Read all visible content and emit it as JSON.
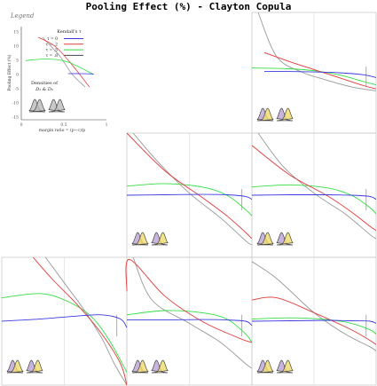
{
  "title": "Pooling Effect (%) - Clayton Copula",
  "colors": {
    "tau0": "#3a3adf",
    "tau2": "#e23a3a",
    "tau5": "#33dd44",
    "tau8": "#999999",
    "panel": "#cccccc",
    "grid": "#dddddd",
    "dens1": "#b9a3d6",
    "dens2": "#f0dc6a",
    "densEdge": "#333333",
    "legendDens": "#bbbbbb"
  },
  "legend": {
    "label": "Legend",
    "heading": "Kendall's τ",
    "entries": [
      {
        "label": "τ = 0",
        "color": "#3a3adf"
      },
      {
        "label": "τ = .2",
        "color": "#e23a3a"
      },
      {
        "label": "τ = .5",
        "color": "#33dd44"
      },
      {
        "label": "τ = .8",
        "color": "#444444"
      }
    ],
    "densities_line1": "Densities of",
    "densities_line2": "D₁ & D₂",
    "ylabel": "Pooling  Effect (%)",
    "xlabel": "margin ratio = (p−c)/p",
    "yticks": [
      "15",
      "10",
      "5",
      "0",
      "-5",
      "-10",
      "-15"
    ],
    "xticks": [
      "0",
      "0.5",
      "1"
    ]
  },
  "chart_data": {
    "type": "line",
    "title": "Pooling Effect (%) - Clayton Copula",
    "xlabel": "margin ratio = (p−c)/p",
    "ylabel": "Pooling  Effect (%)",
    "xlim": [
      0,
      1
    ],
    "ylim": [
      -15,
      15
    ],
    "legend_title": "Kendall's τ",
    "legend_placement": "top-left panel",
    "panels": [
      {
        "id": "r1c3",
        "series": [
          {
            "name": "τ = 0",
            "x": [
              0.1,
              0.3,
              0.5,
              0.7,
              0.9,
              1.0
            ],
            "y": [
              0.3,
              0.3,
              0.2,
              0.0,
              -0.5,
              -1.2
            ]
          },
          {
            "name": "τ = .2",
            "x": [
              0.1,
              0.3,
              0.5,
              0.7,
              0.9,
              1.0
            ],
            "y": [
              5.0,
              2.8,
              0.8,
              -1.2,
              -3.2,
              -4.0
            ]
          },
          {
            "name": "τ = .5",
            "x": [
              0.0,
              0.3,
              0.5,
              0.7,
              0.9,
              1.0
            ],
            "y": [
              1.2,
              1.0,
              0.5,
              -0.5,
              -2.2,
              -3.0
            ]
          },
          {
            "name": "τ = .8",
            "x": [
              0.05,
              0.2,
              0.4,
              0.6,
              0.8,
              1.0
            ],
            "y": [
              15.0,
              4.0,
              0.2,
              -1.8,
              -3.5,
              -4.5
            ]
          }
        ]
      },
      {
        "id": "r2c2",
        "series": [
          {
            "name": "τ = 0",
            "x": [
              0.0,
              0.3,
              0.6,
              0.8,
              0.95,
              1.0
            ],
            "y": [
              0.0,
              0.1,
              0.2,
              0.1,
              -0.3,
              -1.0
            ]
          },
          {
            "name": "τ = .2",
            "x": [
              0.0,
              0.3,
              0.6,
              0.8,
              0.95,
              1.0
            ],
            "y": [
              15.0,
              6.0,
              -0.5,
              -5.0,
              -9.0,
              -10.5
            ]
          },
          {
            "name": "τ = .5",
            "x": [
              0.0,
              0.3,
              0.6,
              0.8,
              0.95,
              1.0
            ],
            "y": [
              2.2,
              2.8,
              2.0,
              0.0,
              -3.5,
              -5.0
            ]
          },
          {
            "name": "τ = .8",
            "x": [
              0.05,
              0.25,
              0.5,
              0.75,
              0.95,
              1.0
            ],
            "y": [
              15.0,
              8.0,
              0.5,
              -5.5,
              -11.0,
              -12.0
            ]
          }
        ]
      },
      {
        "id": "r2c3",
        "series": [
          {
            "name": "τ = 0",
            "x": [
              0.0,
              0.3,
              0.6,
              0.8,
              0.95,
              1.0
            ],
            "y": [
              0.0,
              0.1,
              0.1,
              0.0,
              -0.3,
              -1.0
            ]
          },
          {
            "name": "τ = .2",
            "x": [
              0.0,
              0.3,
              0.6,
              0.8,
              0.95,
              1.0
            ],
            "y": [
              12.0,
              5.0,
              0.0,
              -4.0,
              -7.5,
              -8.5
            ]
          },
          {
            "name": "τ = .5",
            "x": [
              0.0,
              0.3,
              0.6,
              0.8,
              0.95,
              1.0
            ],
            "y": [
              2.0,
              2.5,
              1.8,
              0.0,
              -3.0,
              -4.5
            ]
          },
          {
            "name": "τ = .8",
            "x": [
              0.05,
              0.25,
              0.5,
              0.75,
              0.95,
              1.0
            ],
            "y": [
              15.0,
              7.0,
              0.5,
              -4.5,
              -9.5,
              -10.5
            ]
          }
        ]
      },
      {
        "id": "r3c1",
        "series": [
          {
            "name": "τ = 0",
            "x": [
              0.0,
              0.3,
              0.6,
              0.8,
              0.95,
              1.0
            ],
            "y": [
              0.0,
              0.5,
              1.2,
              1.5,
              0.5,
              -1.5
            ]
          },
          {
            "name": "τ = .2",
            "x": [
              0.25,
              0.4,
              0.6,
              0.8,
              0.95,
              1.0
            ],
            "y": [
              15.0,
              10.0,
              4.0,
              -3.0,
              -10.0,
              -15.0
            ]
          },
          {
            "name": "τ = .5",
            "x": [
              0.0,
              0.3,
              0.5,
              0.7,
              0.85,
              1.0
            ],
            "y": [
              5.5,
              6.5,
              5.0,
              1.5,
              -4.0,
              -12.0
            ]
          },
          {
            "name": "τ = .8",
            "x": [
              0.35,
              0.5,
              0.65,
              0.8,
              0.9,
              1.0
            ],
            "y": [
              15.0,
              9.0,
              3.0,
              -4.0,
              -10.0,
              -15.0
            ]
          }
        ]
      },
      {
        "id": "r3c2",
        "series": [
          {
            "name": "τ = 0",
            "x": [
              0.0,
              0.3,
              0.6,
              0.8,
              0.95,
              1.0
            ],
            "y": [
              0.3,
              0.3,
              0.4,
              0.3,
              0.0,
              -1.0
            ]
          },
          {
            "name": "τ = .2",
            "x": [
              0.0,
              0.02,
              0.3,
              0.6,
              0.9,
              1.0
            ],
            "y": [
              7.0,
              14.5,
              6.0,
              0.0,
              -4.0,
              -5.0
            ]
          },
          {
            "name": "τ = .5",
            "x": [
              0.0,
              0.3,
              0.6,
              0.8,
              0.95,
              1.0
            ],
            "y": [
              1.5,
              2.5,
              2.0,
              0.5,
              -3.0,
              -5.0
            ]
          },
          {
            "name": "τ = .8",
            "x": [
              0.05,
              0.2,
              0.5,
              0.75,
              0.95,
              1.0
            ],
            "y": [
              15.0,
              5.0,
              -0.5,
              -5.0,
              -10.0,
              -11.0
            ]
          }
        ]
      },
      {
        "id": "r3c3",
        "series": [
          {
            "name": "τ = 0",
            "x": [
              0.0,
              0.3,
              0.6,
              0.8,
              0.95,
              1.0
            ],
            "y": [
              0.0,
              0.1,
              0.2,
              0.1,
              0.0,
              -0.5
            ]
          },
          {
            "name": "τ = .2",
            "x": [
              0.0,
              0.2,
              0.5,
              0.8,
              0.95,
              1.0
            ],
            "y": [
              5.0,
              5.5,
              2.0,
              -2.0,
              -4.5,
              -5.5
            ]
          },
          {
            "name": "τ = .5",
            "x": [
              0.0,
              0.3,
              0.6,
              0.8,
              0.95,
              1.0
            ],
            "y": [
              0.5,
              0.8,
              0.4,
              -0.5,
              -2.0,
              -3.0
            ]
          },
          {
            "name": "τ = .8",
            "x": [
              0.0,
              0.2,
              0.5,
              0.75,
              0.95,
              1.0
            ],
            "y": [
              14.0,
              10.0,
              2.0,
              -3.0,
              -6.0,
              -7.0
            ]
          }
        ]
      }
    ]
  }
}
